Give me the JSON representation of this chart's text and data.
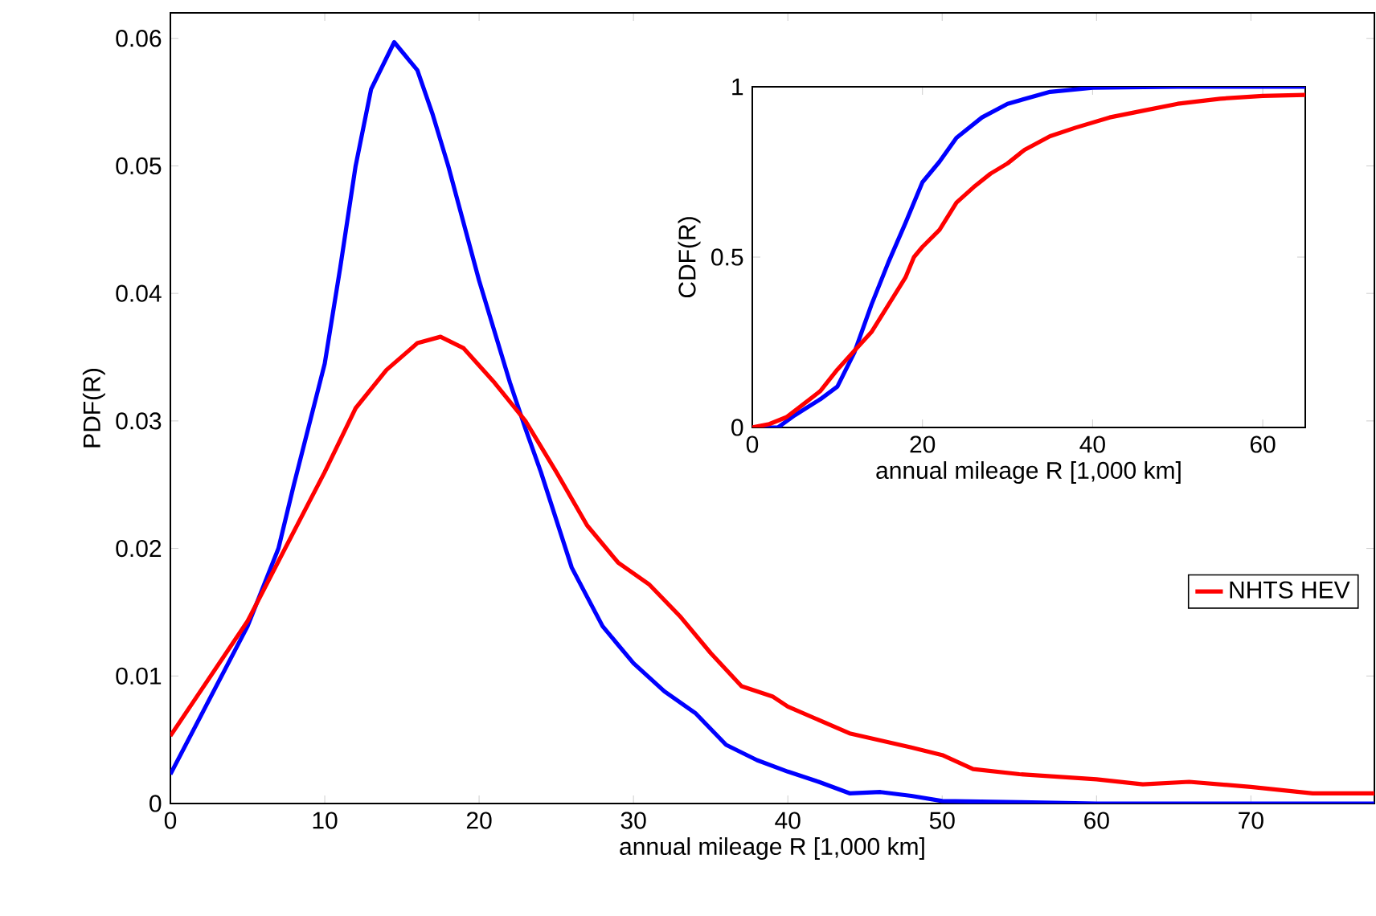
{
  "chart_data": [
    {
      "type": "line",
      "xlabel": "annual mileage R [1,000 km]",
      "ylabel": "PDF(R)",
      "xlim": [
        0,
        78
      ],
      "ylim": [
        0,
        0.062
      ],
      "xticks": [
        0,
        10,
        20,
        30,
        40,
        50,
        60,
        70
      ],
      "yticks": [
        0,
        0.01,
        0.02,
        0.03,
        0.04,
        0.05,
        0.06
      ],
      "legend": "right",
      "series": [
        {
          "color": "#0000ff",
          "x": [
            0,
            5,
            7,
            8,
            10,
            11,
            12,
            13,
            14.5,
            16,
            17,
            18,
            20,
            22,
            23,
            24,
            26,
            28,
            30,
            32,
            34,
            36,
            38,
            40,
            42,
            44,
            46,
            48,
            50,
            55,
            60,
            78
          ],
          "values": [
            0.0023,
            0.0139,
            0.02,
            0.025,
            0.0345,
            0.042,
            0.05,
            0.056,
            0.0597,
            0.0575,
            0.054,
            0.05,
            0.041,
            0.033,
            0.0294,
            0.026,
            0.0185,
            0.0139,
            0.011,
            0.0088,
            0.0071,
            0.0046,
            0.0034,
            0.0025,
            0.0017,
            0.0008,
            0.0009,
            0.0006,
            0.0002,
            0.0001,
            0,
            0
          ]
        },
        {
          "name": "NHTS HEV",
          "color": "#ff0000",
          "x": [
            0,
            5,
            7,
            10,
            12,
            14,
            16,
            17.5,
            19,
            21,
            23,
            25,
            27,
            29,
            31,
            33,
            35,
            37,
            39,
            40,
            44,
            48,
            50,
            52,
            55,
            60,
            63,
            66,
            70,
            74,
            78
          ],
          "values": [
            0.0053,
            0.0143,
            0.019,
            0.026,
            0.031,
            0.034,
            0.0361,
            0.0366,
            0.0357,
            0.033,
            0.03,
            0.026,
            0.0218,
            0.0189,
            0.0172,
            0.0147,
            0.0118,
            0.0092,
            0.0084,
            0.0076,
            0.0055,
            0.0044,
            0.0038,
            0.0027,
            0.0023,
            0.0019,
            0.0015,
            0.0017,
            0.0013,
            0.0008,
            0.0008
          ]
        }
      ]
    },
    {
      "type": "line",
      "xlabel": "annual mileage R [1,000 km]",
      "ylabel": "CDF(R)",
      "xlim": [
        0,
        65
      ],
      "ylim": [
        0,
        1
      ],
      "xticks": [
        0,
        20,
        40,
        60
      ],
      "yticks": [
        0,
        0.5,
        1
      ],
      "series": [
        {
          "color": "#0000ff",
          "x": [
            0,
            3,
            5,
            8,
            10,
            12,
            14,
            16,
            18,
            20,
            22,
            24,
            27,
            30,
            35,
            40,
            50,
            65
          ],
          "values": [
            0,
            0,
            0.036,
            0.083,
            0.12,
            0.22,
            0.36,
            0.485,
            0.6,
            0.72,
            0.78,
            0.85,
            0.91,
            0.95,
            0.985,
            0.997,
            1,
            1
          ]
        },
        {
          "color": "#ff0000",
          "x": [
            0,
            2,
            4,
            6,
            8,
            10,
            12,
            14,
            16,
            18,
            19,
            20,
            22,
            24,
            26,
            28,
            30,
            32,
            35,
            38,
            42,
            46,
            50,
            55,
            60,
            65
          ],
          "values": [
            0,
            0.01,
            0.03,
            0.068,
            0.107,
            0.17,
            0.225,
            0.28,
            0.36,
            0.44,
            0.5,
            0.53,
            0.58,
            0.66,
            0.705,
            0.745,
            0.775,
            0.815,
            0.855,
            0.88,
            0.91,
            0.93,
            0.95,
            0.965,
            0.973,
            0.976
          ]
        }
      ]
    }
  ]
}
